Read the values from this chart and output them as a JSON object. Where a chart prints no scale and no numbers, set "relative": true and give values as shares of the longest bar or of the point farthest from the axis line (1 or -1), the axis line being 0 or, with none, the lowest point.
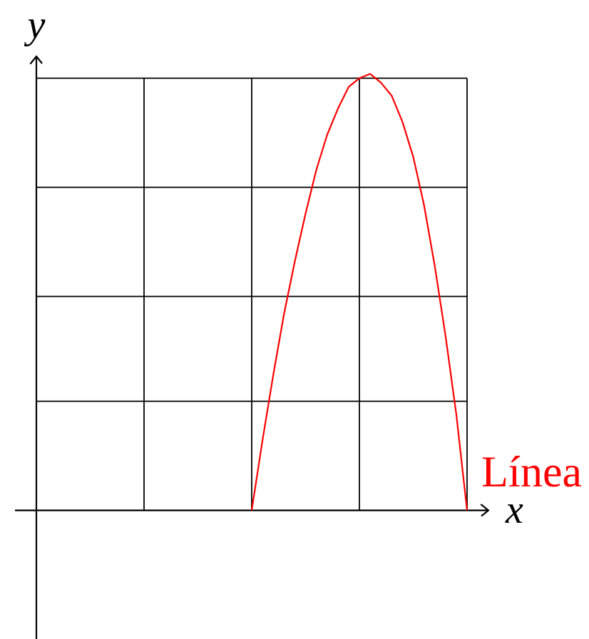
{
  "chart_data": {
    "type": "line",
    "xlabel": "x",
    "ylabel": "y",
    "relative": true,
    "grid": "x",
    "categories": [
      null,
      null,
      null,
      null,
      null,
      null,
      null,
      null,
      null,
      null,
      null,
      null,
      null,
      null,
      null,
      null,
      null,
      null,
      null,
      null,
      null,
      null,
      null,
      null,
      null,
      null,
      null,
      null,
      null,
      null,
      null,
      null,
      null,
      null,
      null,
      null,
      null,
      null,
      null,
      null,
      null
    ],
    "series": [
      {
        "name": "Línea",
        "color": "#ff0000",
        "values": [
          null,
          null,
          null,
          null,
          null,
          null,
          null,
          null,
          null,
          null,
          null,
          null,
          null,
          null,
          null,
          null,
          null,
          null,
          null,
          null,
          0,
          0.16,
          0.31,
          0.45,
          0.57,
          0.68,
          0.78,
          0.86,
          0.92,
          0.97,
          0.99,
          1.0,
          0.98,
          0.95,
          0.89,
          0.81,
          0.7,
          0.56,
          0.4,
          0.22,
          0
        ]
      }
    ],
    "ref_lines": [
      {
        "axis": "y",
        "value": 0.25,
        "color": "#000000"
      },
      {
        "axis": "y",
        "value": 0.49,
        "color": "#000000"
      },
      {
        "axis": "y",
        "value": 0.74,
        "color": "#000000"
      },
      {
        "axis": "y",
        "value": 0.99,
        "color": "#000000"
      }
    ]
  }
}
